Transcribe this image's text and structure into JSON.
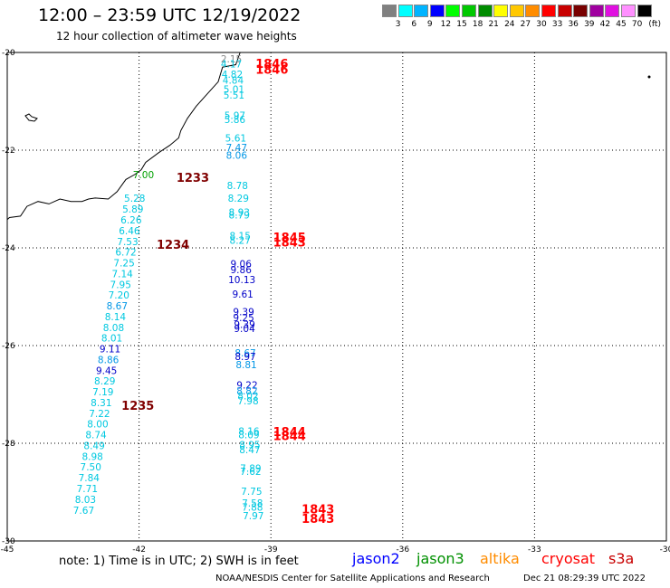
{
  "header": {
    "title": "12:00 – 23:59 UTC 12/19/2022",
    "subtitle": "12 hour collection of altimeter wave heights"
  },
  "color_scale": {
    "colors": [
      "#808080",
      "#00ffff",
      "#00b4ff",
      "#0000ff",
      "#00ff00",
      "#00c800",
      "#008c00",
      "#ffff00",
      "#ffc800",
      "#ff8c00",
      "#ff0000",
      "#c80000",
      "#780000",
      "#a000a0",
      "#e010e0",
      "#ff90ff",
      "#000000"
    ],
    "labels": [
      "3",
      "6",
      "9",
      "12",
      "15",
      "18",
      "21",
      "24",
      "27",
      "30",
      "33",
      "36",
      "39",
      "42",
      "45",
      "70"
    ],
    "unit": "(ft)"
  },
  "axes": {
    "lon_labels": [
      "-45",
      "-42",
      "-39",
      "-36",
      "-33",
      "-30"
    ],
    "lon_values": [
      -45,
      -42,
      -39,
      -36,
      -33,
      -30
    ],
    "lat_labels": [
      "-20",
      "-22",
      "-24",
      "-26",
      "-28",
      "-30"
    ],
    "lat_values": [
      -20,
      -22,
      -24,
      -26,
      -28,
      -30
    ],
    "lon_range": [
      -45,
      -30
    ],
    "lat_range": [
      -30,
      -20
    ],
    "grid": "dotted"
  },
  "swh_colors": {
    "grey": "#888888",
    "cyan": "#00c8e0",
    "mid": "#0096e6",
    "blue": "#0000c8",
    "green": "#00a000"
  },
  "time_colors": {
    "dark": "#800000",
    "red": "#ff0000"
  },
  "tracks": [
    {
      "satellite": "jason3",
      "time": "1233",
      "time_color": "dark",
      "points": [
        {
          "lon": -41.9,
          "lat": -22.57,
          "swh": "7.00",
          "color": "green"
        }
      ]
    },
    {
      "satellite": "cryosat",
      "time": "1234",
      "time_color": "dark",
      "points": [
        {
          "lon": -42.1,
          "lat": -23.06,
          "swh": "5.28",
          "color": "cyan"
        },
        {
          "lon": -42.14,
          "lat": -23.28,
          "swh": "5.89",
          "color": "cyan"
        },
        {
          "lon": -42.18,
          "lat": -23.5,
          "swh": "6.26",
          "color": "cyan"
        },
        {
          "lon": -42.22,
          "lat": -23.72,
          "swh": "6.46",
          "color": "cyan"
        },
        {
          "lon": -42.26,
          "lat": -23.94,
          "swh": "7.53",
          "color": "cyan"
        },
        {
          "lon": -42.3,
          "lat": -24.16,
          "swh": "6.72",
          "color": "cyan"
        },
        {
          "lon": -42.34,
          "lat": -24.38,
          "swh": "7.25",
          "color": "cyan"
        },
        {
          "lon": -42.38,
          "lat": -24.6,
          "swh": "7.14",
          "color": "cyan"
        },
        {
          "lon": -42.42,
          "lat": -24.82,
          "swh": "7.95",
          "color": "cyan"
        },
        {
          "lon": -42.46,
          "lat": -25.04,
          "swh": "7.20",
          "color": "cyan"
        },
        {
          "lon": -42.5,
          "lat": -25.26,
          "swh": "8.67",
          "color": "mid"
        },
        {
          "lon": -42.54,
          "lat": -25.48,
          "swh": "8.14",
          "color": "cyan"
        },
        {
          "lon": -42.58,
          "lat": -25.7,
          "swh": "8.08",
          "color": "cyan"
        },
        {
          "lon": -42.62,
          "lat": -25.92,
          "swh": "8.01",
          "color": "cyan"
        },
        {
          "lon": -42.66,
          "lat": -26.14,
          "swh": "9.11",
          "color": "blue"
        },
        {
          "lon": -42.7,
          "lat": -26.36,
          "swh": "8.86",
          "color": "mid"
        },
        {
          "lon": -42.74,
          "lat": -26.58,
          "swh": "9.45",
          "color": "blue"
        },
        {
          "lon": -42.78,
          "lat": -26.8,
          "swh": "8.29",
          "color": "cyan"
        }
      ]
    },
    {
      "satellite": "cryosat",
      "time": "1235",
      "time_color": "dark",
      "points": [
        {
          "lon": -42.82,
          "lat": -27.02,
          "swh": "7.19",
          "color": "cyan"
        },
        {
          "lon": -42.86,
          "lat": -27.24,
          "swh": "8.31",
          "color": "cyan"
        },
        {
          "lon": -42.9,
          "lat": -27.46,
          "swh": "7.22",
          "color": "cyan"
        },
        {
          "lon": -42.94,
          "lat": -27.68,
          "swh": "8.00",
          "color": "cyan"
        },
        {
          "lon": -42.98,
          "lat": -27.9,
          "swh": "8.74",
          "color": "cyan"
        },
        {
          "lon": -43.02,
          "lat": -28.12,
          "swh": "8.49",
          "color": "cyan"
        },
        {
          "lon": -43.06,
          "lat": -28.34,
          "swh": "8.98",
          "color": "cyan"
        },
        {
          "lon": -43.1,
          "lat": -28.56,
          "swh": "7.50",
          "color": "cyan"
        },
        {
          "lon": -43.14,
          "lat": -28.78,
          "swh": "7.84",
          "color": "cyan"
        },
        {
          "lon": -43.18,
          "lat": -29.0,
          "swh": "7.71",
          "color": "cyan"
        },
        {
          "lon": -43.22,
          "lat": -29.22,
          "swh": "8.03",
          "color": "cyan"
        },
        {
          "lon": -43.26,
          "lat": -29.44,
          "swh": "7.67",
          "color": "cyan"
        }
      ]
    },
    {
      "satellite": "cryosat",
      "time": "1846",
      "time_color": "red",
      "points": [
        {
          "lon": -39.9,
          "lat": -20.2,
          "swh": "2.15",
          "color": "grey"
        },
        {
          "lon": -39.9,
          "lat": -20.31,
          "swh": "4.17",
          "color": "cyan"
        },
        {
          "lon": -39.88,
          "lat": -20.52,
          "swh": "4.82",
          "color": "cyan"
        },
        {
          "lon": -39.86,
          "lat": -20.64,
          "swh": "4.84",
          "color": "cyan"
        },
        {
          "lon": -39.84,
          "lat": -20.82,
          "swh": "5.01",
          "color": "cyan"
        },
        {
          "lon": -39.84,
          "lat": -20.94,
          "swh": "5.51",
          "color": "cyan"
        },
        {
          "lon": -39.82,
          "lat": -21.36,
          "swh": "5.97",
          "color": "cyan"
        },
        {
          "lon": -39.82,
          "lat": -21.44,
          "swh": "5.86",
          "color": "cyan"
        },
        {
          "lon": -39.8,
          "lat": -21.82,
          "swh": "5.61",
          "color": "cyan"
        },
        {
          "lon": -39.78,
          "lat": -22.02,
          "swh": "7.47",
          "color": "mid"
        },
        {
          "lon": -39.78,
          "lat": -22.18,
          "swh": "8.06",
          "color": "mid"
        }
      ]
    },
    {
      "satellite": "cryosat",
      "time": "1845",
      "time_color": "red",
      "points": [
        {
          "lon": -39.76,
          "lat": -22.8,
          "swh": "8.78",
          "color": "cyan"
        },
        {
          "lon": -39.74,
          "lat": -23.06,
          "swh": "8.29",
          "color": "cyan"
        },
        {
          "lon": -39.72,
          "lat": -23.34,
          "swh": "8.93",
          "color": "cyan"
        },
        {
          "lon": -39.72,
          "lat": -23.4,
          "swh": "8.79",
          "color": "cyan"
        },
        {
          "lon": -39.7,
          "lat": -23.82,
          "swh": "8.15",
          "color": "cyan"
        },
        {
          "lon": -39.7,
          "lat": -23.92,
          "swh": "8.27",
          "color": "cyan"
        }
      ]
    },
    {
      "satellite": "cryosat",
      "time": "1843",
      "time_color": "red",
      "points": [
        {
          "lon": -39.68,
          "lat": -24.4,
          "swh": "9.06",
          "color": "blue"
        },
        {
          "lon": -39.68,
          "lat": -24.52,
          "swh": "9.86",
          "color": "blue"
        },
        {
          "lon": -39.66,
          "lat": -24.72,
          "swh": "10.13",
          "color": "blue"
        },
        {
          "lon": -39.64,
          "lat": -25.02,
          "swh": "9.61",
          "color": "blue"
        },
        {
          "lon": -39.62,
          "lat": -25.38,
          "swh": "9.39",
          "color": "blue"
        },
        {
          "lon": -39.62,
          "lat": -25.5,
          "swh": "9.25",
          "color": "blue"
        },
        {
          "lon": -39.6,
          "lat": -25.64,
          "swh": "9.39",
          "color": "blue"
        },
        {
          "lon": -39.6,
          "lat": -25.72,
          "swh": "9.04",
          "color": "blue"
        }
      ]
    },
    {
      "satellite": "cryosat",
      "time": "1844",
      "time_color": "red",
      "points": [
        {
          "lon": -39.58,
          "lat": -26.22,
          "swh": "8.67",
          "color": "mid"
        },
        {
          "lon": -39.58,
          "lat": -26.3,
          "swh": "8.97",
          "color": "blue"
        },
        {
          "lon": -39.56,
          "lat": -26.46,
          "swh": "8.81",
          "color": "mid"
        },
        {
          "lon": -39.54,
          "lat": -26.88,
          "swh": "9.22",
          "color": "blue"
        },
        {
          "lon": -39.54,
          "lat": -27.0,
          "swh": "8.82",
          "color": "mid"
        },
        {
          "lon": -39.52,
          "lat": -27.1,
          "swh": "8.02",
          "color": "cyan"
        },
        {
          "lon": -39.52,
          "lat": -27.2,
          "swh": "7.98",
          "color": "cyan"
        },
        {
          "lon": -39.5,
          "lat": -27.82,
          "swh": "8.16",
          "color": "cyan"
        },
        {
          "lon": -39.5,
          "lat": -27.9,
          "swh": "8.09",
          "color": "cyan"
        },
        {
          "lon": -39.48,
          "lat": -28.1,
          "swh": "8.95",
          "color": "cyan"
        },
        {
          "lon": -39.48,
          "lat": -28.2,
          "swh": "8.47",
          "color": "cyan"
        },
        {
          "lon": -39.46,
          "lat": -28.58,
          "swh": "7.89",
          "color": "cyan"
        },
        {
          "lon": -39.46,
          "lat": -28.65,
          "swh": "7.62",
          "color": "cyan"
        }
      ]
    },
    {
      "satellite": "cryosat",
      "time": "1843",
      "time_color": "red",
      "points": [
        {
          "lon": -39.44,
          "lat": -29.06,
          "swh": "7.75",
          "color": "cyan"
        },
        {
          "lon": -39.42,
          "lat": -29.3,
          "swh": "7.58",
          "color": "cyan"
        },
        {
          "lon": -39.42,
          "lat": -29.38,
          "swh": "7.88",
          "color": "cyan"
        },
        {
          "lon": -39.4,
          "lat": -29.56,
          "swh": "7.97",
          "color": "cyan"
        }
      ]
    }
  ],
  "time_labels": [
    {
      "text": "1846",
      "lon": -39.35,
      "lat": -20.24
    },
    {
      "text": "1846",
      "lon": -39.35,
      "lat": -20.36
    },
    {
      "text": "1233",
      "lon": -41.15,
      "lat": -22.57
    },
    {
      "text": "1845",
      "lon": -38.95,
      "lat": -23.8
    },
    {
      "text": "1843",
      "lon": -38.95,
      "lat": -23.9
    },
    {
      "text": "1234",
      "lon": -41.6,
      "lat": -23.94
    },
    {
      "text": "1235",
      "lon": -42.4,
      "lat": -27.24
    },
    {
      "text": "1844",
      "lon": -38.95,
      "lat": -27.78
    },
    {
      "text": "1844",
      "lon": -38.95,
      "lat": -27.86
    },
    {
      "text": "1843",
      "lon": -38.3,
      "lat": -29.36
    },
    {
      "text": "1843",
      "lon": -38.3,
      "lat": -29.56
    }
  ],
  "coastline": [
    [
      -39.7,
      -20.0
    ],
    [
      -39.8,
      -20.25
    ],
    [
      -40.1,
      -20.3
    ],
    [
      -40.2,
      -20.6
    ],
    [
      -40.45,
      -20.85
    ],
    [
      -40.7,
      -21.1
    ],
    [
      -40.9,
      -21.35
    ],
    [
      -41.05,
      -21.6
    ],
    [
      -41.1,
      -21.75
    ],
    [
      -41.3,
      -21.9
    ],
    [
      -41.55,
      -22.05
    ],
    [
      -41.85,
      -22.25
    ],
    [
      -41.95,
      -22.4
    ],
    [
      -42.1,
      -22.5
    ],
    [
      -42.3,
      -22.6
    ],
    [
      -42.5,
      -22.85
    ],
    [
      -42.7,
      -23.0
    ],
    [
      -43.0,
      -22.98
    ],
    [
      -43.15,
      -23.0
    ],
    [
      -43.3,
      -23.05
    ],
    [
      -43.55,
      -23.05
    ],
    [
      -43.8,
      -23.0
    ],
    [
      -44.05,
      -23.1
    ],
    [
      -44.3,
      -23.05
    ],
    [
      -44.55,
      -23.15
    ],
    [
      -44.7,
      -23.35
    ],
    [
      -44.95,
      -23.38
    ],
    [
      -45.0,
      -23.42
    ]
  ],
  "footer": {
    "note": "note:  1) Time is in UTC;  2) SWH is in feet",
    "satellites": [
      {
        "name": "jason2",
        "color": "#0000ff"
      },
      {
        "name": "jason3",
        "color": "#009000"
      },
      {
        "name": "altika",
        "color": "#ff8c00"
      },
      {
        "name": "cryosat",
        "color": "#ff0000"
      },
      {
        "name": "s3a",
        "color": "#c80000"
      }
    ],
    "credit": "NOAA/NESDIS Center for Satellite Applications and Research",
    "timestamp": "Dec 21 08:29:39 UTC 2022"
  }
}
